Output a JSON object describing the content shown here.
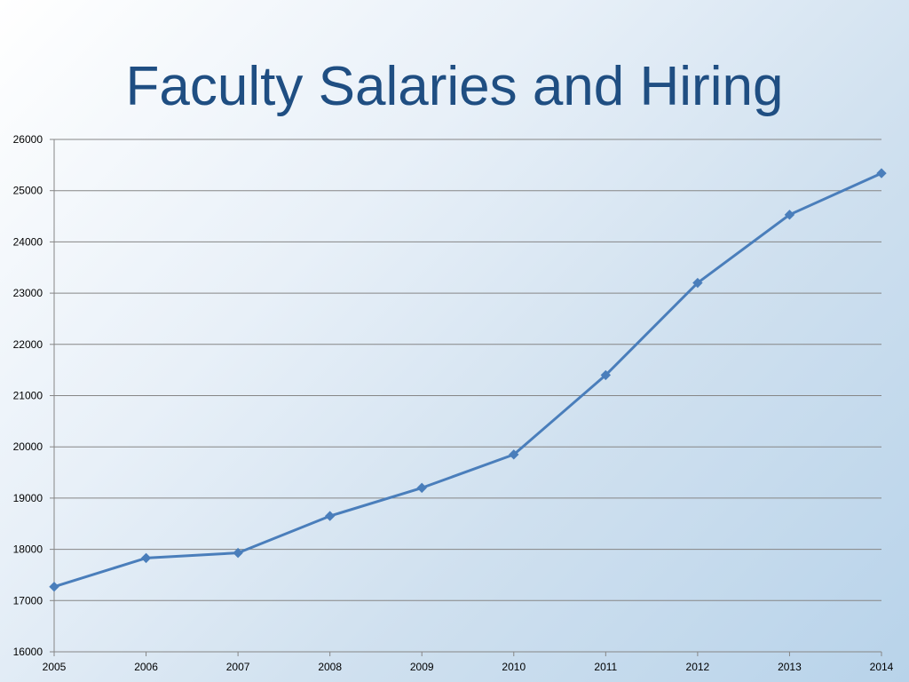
{
  "title": "Faculty Salaries and Hiring",
  "chart_data": {
    "type": "line",
    "title": "Faculty Salaries and Hiring",
    "xlabel": "",
    "ylabel": "",
    "x": [
      2005,
      2006,
      2007,
      2008,
      2009,
      2010,
      2011,
      2012,
      2013,
      2014
    ],
    "series": [
      {
        "values": [
          17270,
          17830,
          17930,
          18650,
          19200,
          19850,
          21400,
          23200,
          24530,
          25340
        ],
        "color": "#4a7ebb",
        "marker": "diamond"
      }
    ],
    "ylim": [
      16000,
      26000
    ],
    "yticks": [
      16000,
      17000,
      18000,
      19000,
      20000,
      21000,
      22000,
      23000,
      24000,
      25000,
      26000
    ],
    "xticks": [
      2005,
      2006,
      2007,
      2008,
      2009,
      2010,
      2011,
      2012,
      2013,
      2014
    ],
    "grid": true,
    "legend": "none",
    "colors": {
      "title": "#1f4e82",
      "line": "#4a7ebb",
      "grid": "#868686"
    }
  }
}
